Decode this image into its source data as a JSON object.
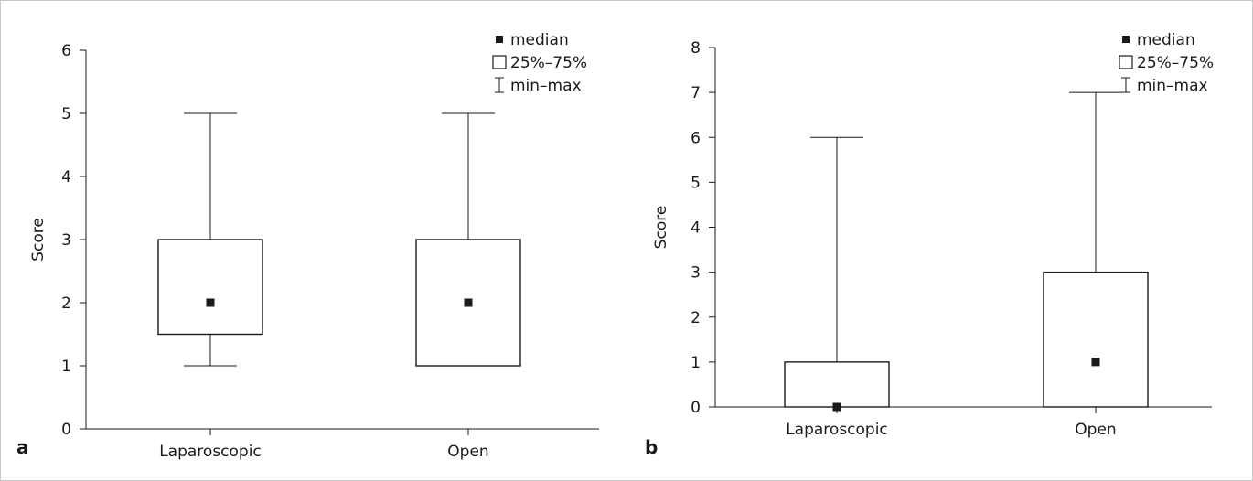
{
  "chart_data": [
    {
      "type": "boxplot",
      "panel_label": "a",
      "ylabel": "Score",
      "ylim": [
        0,
        6
      ],
      "yticks": [
        "0",
        "1",
        "2",
        "3",
        "4",
        "5",
        "6"
      ],
      "categories": [
        "Laparoscopic",
        "Open"
      ],
      "boxes": [
        {
          "category": "Laparoscopic",
          "min": 1,
          "q1": 1.5,
          "median": 2,
          "q3": 3,
          "max": 5
        },
        {
          "category": "Open",
          "min": 1,
          "q1": 1,
          "median": 2,
          "q3": 3,
          "max": 5
        }
      ],
      "legend": {
        "median": "median",
        "box": "25%–75%",
        "whisker": "min–max",
        "placement": "top-right"
      }
    },
    {
      "type": "boxplot",
      "panel_label": "b",
      "ylabel": "Score",
      "ylim": [
        0,
        8
      ],
      "yticks": [
        "0",
        "1",
        "2",
        "3",
        "4",
        "5",
        "6",
        "7",
        "8"
      ],
      "categories": [
        "Laparoscopic",
        "Open"
      ],
      "boxes": [
        {
          "category": "Laparoscopic",
          "min": 0,
          "q1": 0,
          "median": 0,
          "q3": 1,
          "max": 6
        },
        {
          "category": "Open",
          "min": 0,
          "q1": 0,
          "median": 1,
          "q3": 3,
          "max": 7
        }
      ],
      "legend": {
        "median": "median",
        "box": "25%–75%",
        "whisker": "min–max",
        "placement": "top-right"
      }
    }
  ]
}
